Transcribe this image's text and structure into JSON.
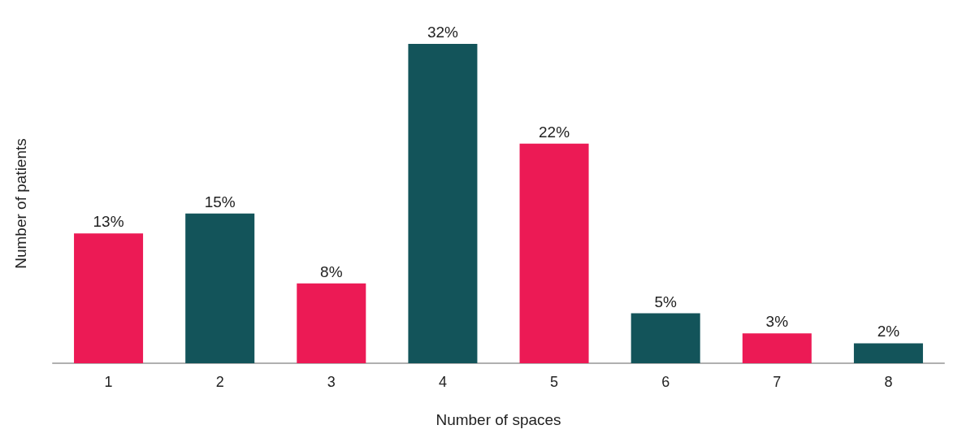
{
  "chart_data": {
    "type": "bar",
    "xlabel": "Number of spaces",
    "ylabel": "Number of patients",
    "categories": [
      "1",
      "2",
      "3",
      "4",
      "5",
      "6",
      "7",
      "8"
    ],
    "values": [
      13,
      15,
      8,
      32,
      22,
      5,
      3,
      2
    ],
    "value_labels": [
      "13%",
      "15%",
      "8%",
      "32%",
      "22%",
      "5%",
      "3%",
      "2%"
    ],
    "colors": [
      "#ec1a55",
      "#13545a",
      "#ec1a55",
      "#13545a",
      "#ec1a55",
      "#13545a",
      "#ec1a55",
      "#13545a"
    ],
    "grid": false
  }
}
